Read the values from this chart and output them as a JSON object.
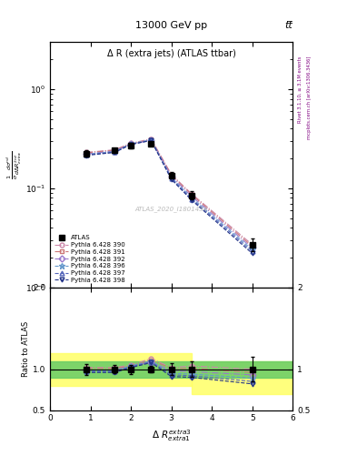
{
  "title_top": "13000 GeV pp",
  "title_right": "tt̅",
  "plot_title": "Δ R (extra jets) (ATLAS ttbar)",
  "xlabel": "Δ R$^{extra3}_{extra1}$",
  "ylabel_main": "$\\frac{1}{\\sigma}\\frac{d\\sigma^{nd}}{d\\Delta R^{2nd}_{extra}}$",
  "ylabel_ratio": "Ratio to ATLAS",
  "watermark": "ATLAS_2020_I1801434",
  "right_label": "Rivet 3.1.10, ≥ 3.1M events",
  "right_label2": "mcplots.cern.ch [arXiv:1306.3436]",
  "x_values": [
    0.9,
    1.6,
    2.0,
    2.5,
    3.0,
    3.5,
    5.0
  ],
  "atlas_y": [
    0.225,
    0.24,
    0.27,
    0.28,
    0.135,
    0.085,
    0.027
  ],
  "atlas_yerr": [
    0.015,
    0.012,
    0.015,
    0.012,
    0.01,
    0.008,
    0.004
  ],
  "series": [
    {
      "label": "Pythia 6.428 390",
      "color": "#cc88aa",
      "linestyle": "-.",
      "marker": "o",
      "fillstyle": "none",
      "y": [
        0.23,
        0.245,
        0.285,
        0.315,
        0.138,
        0.088,
        0.027
      ],
      "ratio": [
        1.02,
        1.02,
        1.05,
        1.13,
        1.02,
        1.04,
        1.0
      ]
    },
    {
      "label": "Pythia 6.428 391",
      "color": "#cc7777",
      "linestyle": "-.",
      "marker": "s",
      "fillstyle": "none",
      "y": [
        0.228,
        0.242,
        0.282,
        0.31,
        0.136,
        0.086,
        0.026
      ],
      "ratio": [
        1.01,
        1.01,
        1.04,
        1.11,
        1.01,
        1.01,
        0.96
      ]
    },
    {
      "label": "Pythia 6.428 392",
      "color": "#9977cc",
      "linestyle": "-.",
      "marker": "D",
      "fillstyle": "none",
      "y": [
        0.222,
        0.238,
        0.279,
        0.305,
        0.132,
        0.083,
        0.025
      ],
      "ratio": [
        0.99,
        0.99,
        1.03,
        1.09,
        0.98,
        0.97,
        0.93
      ]
    },
    {
      "label": "Pythia 6.428 396",
      "color": "#6699cc",
      "linestyle": "--",
      "marker": "*",
      "fillstyle": "none",
      "y": [
        0.22,
        0.235,
        0.282,
        0.308,
        0.128,
        0.08,
        0.024
      ],
      "ratio": [
        0.98,
        0.98,
        1.04,
        1.1,
        0.95,
        0.94,
        0.89
      ]
    },
    {
      "label": "Pythia 6.428 397",
      "color": "#5566bb",
      "linestyle": "--",
      "marker": "^",
      "fillstyle": "none",
      "y": [
        0.218,
        0.232,
        0.279,
        0.305,
        0.126,
        0.078,
        0.023
      ],
      "ratio": [
        0.97,
        0.97,
        1.03,
        1.09,
        0.93,
        0.92,
        0.85
      ]
    },
    {
      "label": "Pythia 6.428 398",
      "color": "#223388",
      "linestyle": "--",
      "marker": "v",
      "fillstyle": "none",
      "y": [
        0.215,
        0.23,
        0.277,
        0.303,
        0.123,
        0.076,
        0.022
      ],
      "ratio": [
        0.96,
        0.96,
        1.02,
        1.08,
        0.91,
        0.9,
        0.82
      ]
    }
  ],
  "ylim_main": [
    0.01,
    3.0
  ],
  "ylim_ratio": [
    0.5,
    2.0
  ],
  "xlim": [
    0,
    6
  ]
}
